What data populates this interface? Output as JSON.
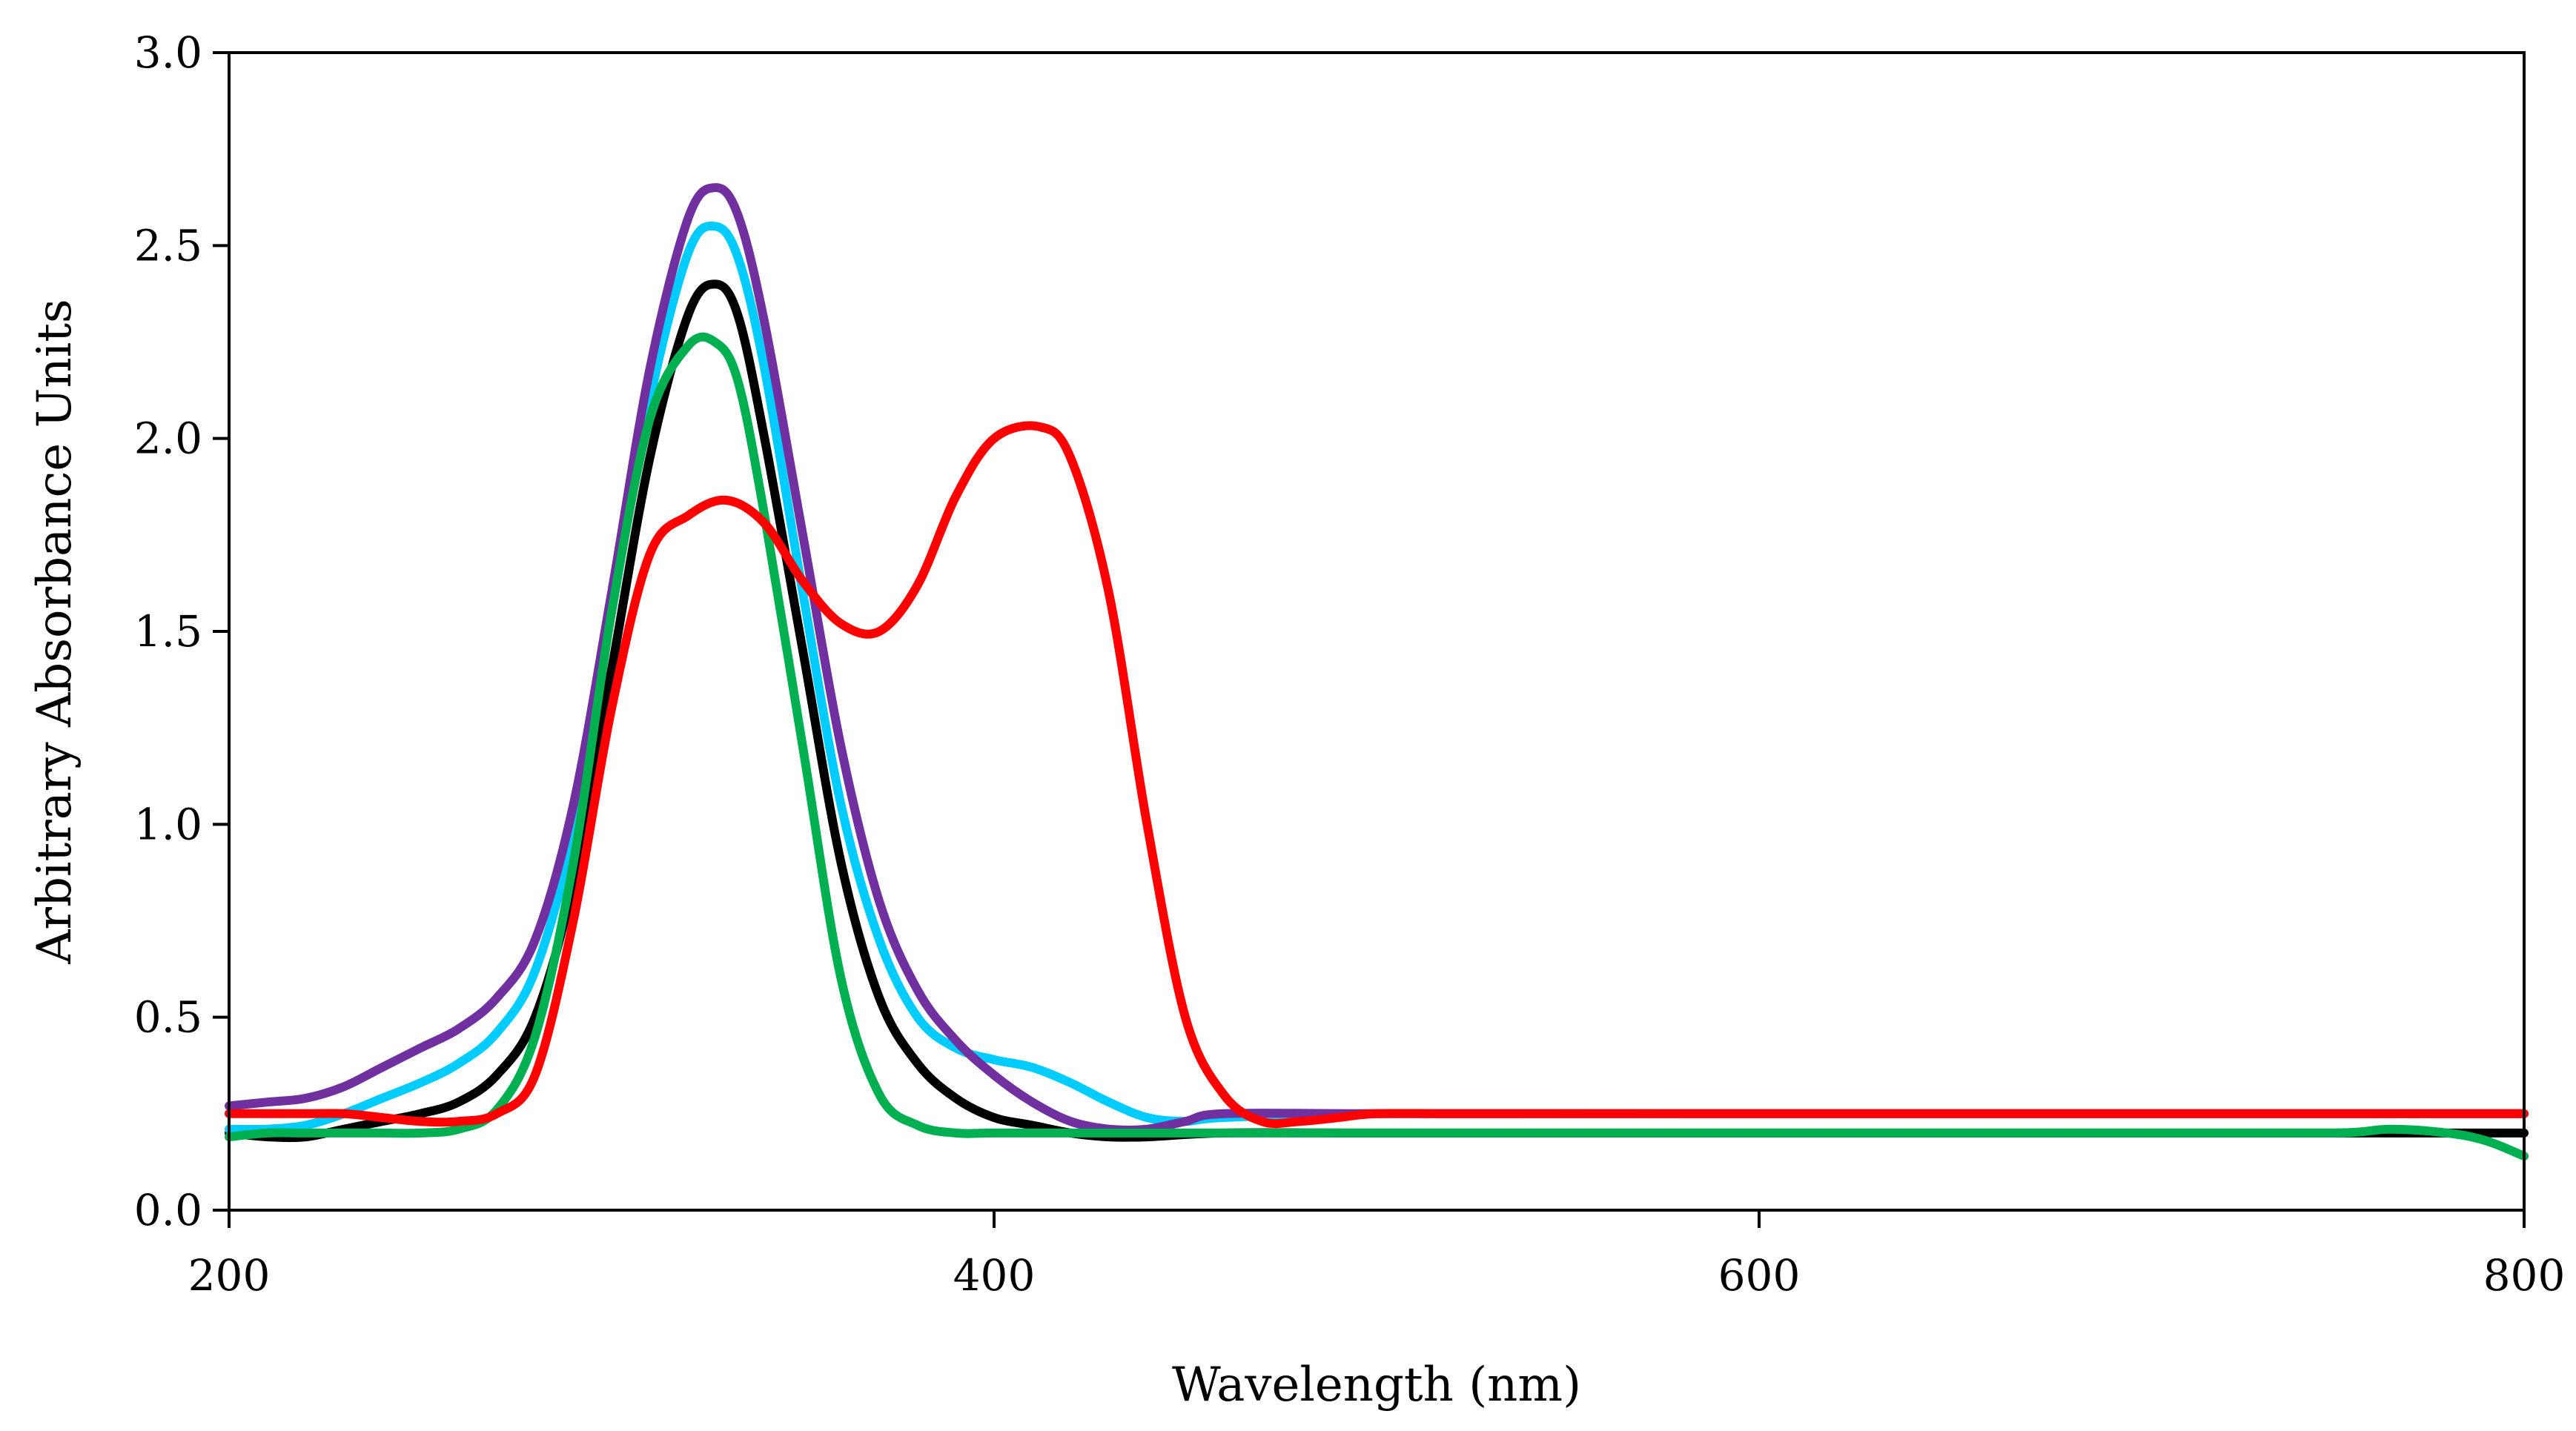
{
  "chart_data": {
    "type": "line",
    "title": "",
    "xlabel": "Wavelength (nm)",
    "ylabel": "Arbitrary Absorbance Units",
    "xlim": [
      200,
      800
    ],
    "ylim": [
      0,
      3
    ],
    "grid": false,
    "legend": "none",
    "x_ticks": [
      200,
      400,
      600,
      800
    ],
    "x_tick_labels": [
      "200",
      "400",
      "600",
      "800"
    ],
    "y_ticks": [
      0,
      0.5,
      1,
      1.5,
      2,
      2.5,
      3
    ],
    "y_tick_labels": [
      "0.0",
      "0.5",
      "1.0",
      "1.5",
      "2.0",
      "2.5",
      "3.0"
    ],
    "series": [
      {
        "name": "black",
        "color": "#000000",
        "points": [
          [
            200,
            0.2
          ],
          [
            210,
            0.19
          ],
          [
            220,
            0.19
          ],
          [
            230,
            0.21
          ],
          [
            240,
            0.23
          ],
          [
            250,
            0.25
          ],
          [
            260,
            0.28
          ],
          [
            270,
            0.35
          ],
          [
            280,
            0.5
          ],
          [
            290,
            0.85
          ],
          [
            300,
            1.4
          ],
          [
            310,
            1.95
          ],
          [
            320,
            2.32
          ],
          [
            327,
            2.4
          ],
          [
            333,
            2.32
          ],
          [
            340,
            2.0
          ],
          [
            350,
            1.45
          ],
          [
            360,
            0.9
          ],
          [
            370,
            0.55
          ],
          [
            380,
            0.38
          ],
          [
            390,
            0.29
          ],
          [
            400,
            0.24
          ],
          [
            410,
            0.22
          ],
          [
            420,
            0.2
          ],
          [
            430,
            0.19
          ],
          [
            440,
            0.19
          ],
          [
            460,
            0.2
          ],
          [
            500,
            0.2
          ],
          [
            600,
            0.2
          ],
          [
            700,
            0.2
          ],
          [
            800,
            0.2
          ]
        ]
      },
      {
        "name": "cyan",
        "color": "#00CCFF",
        "points": [
          [
            200,
            0.21
          ],
          [
            210,
            0.21
          ],
          [
            220,
            0.22
          ],
          [
            230,
            0.25
          ],
          [
            240,
            0.29
          ],
          [
            250,
            0.33
          ],
          [
            260,
            0.38
          ],
          [
            270,
            0.46
          ],
          [
            280,
            0.62
          ],
          [
            290,
            0.98
          ],
          [
            300,
            1.55
          ],
          [
            310,
            2.1
          ],
          [
            320,
            2.48
          ],
          [
            327,
            2.55
          ],
          [
            333,
            2.47
          ],
          [
            340,
            2.18
          ],
          [
            350,
            1.6
          ],
          [
            360,
            1.05
          ],
          [
            370,
            0.7
          ],
          [
            380,
            0.5
          ],
          [
            390,
            0.42
          ],
          [
            400,
            0.39
          ],
          [
            410,
            0.37
          ],
          [
            420,
            0.33
          ],
          [
            430,
            0.28
          ],
          [
            440,
            0.24
          ],
          [
            450,
            0.23
          ],
          [
            460,
            0.24
          ],
          [
            500,
            0.25
          ],
          [
            600,
            0.25
          ],
          [
            700,
            0.25
          ],
          [
            800,
            0.25
          ]
        ]
      },
      {
        "name": "purple",
        "color": "#7030A0",
        "points": [
          [
            200,
            0.27
          ],
          [
            210,
            0.28
          ],
          [
            220,
            0.29
          ],
          [
            230,
            0.32
          ],
          [
            240,
            0.37
          ],
          [
            250,
            0.42
          ],
          [
            260,
            0.47
          ],
          [
            270,
            0.55
          ],
          [
            280,
            0.7
          ],
          [
            290,
            1.05
          ],
          [
            300,
            1.6
          ],
          [
            310,
            2.18
          ],
          [
            320,
            2.57
          ],
          [
            327,
            2.65
          ],
          [
            333,
            2.58
          ],
          [
            340,
            2.3
          ],
          [
            350,
            1.75
          ],
          [
            360,
            1.2
          ],
          [
            370,
            0.8
          ],
          [
            380,
            0.57
          ],
          [
            390,
            0.44
          ],
          [
            400,
            0.35
          ],
          [
            410,
            0.28
          ],
          [
            420,
            0.23
          ],
          [
            430,
            0.21
          ],
          [
            440,
            0.21
          ],
          [
            450,
            0.23
          ],
          [
            460,
            0.25
          ],
          [
            500,
            0.25
          ],
          [
            600,
            0.25
          ],
          [
            700,
            0.25
          ],
          [
            800,
            0.25
          ]
        ]
      },
      {
        "name": "green",
        "color": "#00B050",
        "points": [
          [
            200,
            0.19
          ],
          [
            210,
            0.2
          ],
          [
            220,
            0.2
          ],
          [
            230,
            0.2
          ],
          [
            240,
            0.2
          ],
          [
            250,
            0.2
          ],
          [
            260,
            0.21
          ],
          [
            270,
            0.26
          ],
          [
            280,
            0.45
          ],
          [
            290,
            0.9
          ],
          [
            300,
            1.55
          ],
          [
            310,
            2.05
          ],
          [
            320,
            2.24
          ],
          [
            327,
            2.25
          ],
          [
            333,
            2.15
          ],
          [
            340,
            1.8
          ],
          [
            350,
            1.2
          ],
          [
            360,
            0.6
          ],
          [
            370,
            0.3
          ],
          [
            380,
            0.22
          ],
          [
            390,
            0.2
          ],
          [
            400,
            0.2
          ],
          [
            420,
            0.2
          ],
          [
            440,
            0.2
          ],
          [
            460,
            0.2
          ],
          [
            500,
            0.2
          ],
          [
            600,
            0.2
          ],
          [
            700,
            0.2
          ],
          [
            750,
            0.2
          ],
          [
            765,
            0.21
          ],
          [
            780,
            0.2
          ],
          [
            790,
            0.18
          ],
          [
            800,
            0.14
          ]
        ]
      },
      {
        "name": "red",
        "color": "#FF0000",
        "points": [
          [
            200,
            0.25
          ],
          [
            210,
            0.25
          ],
          [
            220,
            0.25
          ],
          [
            230,
            0.25
          ],
          [
            240,
            0.24
          ],
          [
            250,
            0.23
          ],
          [
            260,
            0.23
          ],
          [
            270,
            0.25
          ],
          [
            280,
            0.35
          ],
          [
            290,
            0.75
          ],
          [
            300,
            1.3
          ],
          [
            310,
            1.7
          ],
          [
            320,
            1.8
          ],
          [
            330,
            1.84
          ],
          [
            340,
            1.78
          ],
          [
            350,
            1.63
          ],
          [
            360,
            1.52
          ],
          [
            370,
            1.5
          ],
          [
            380,
            1.62
          ],
          [
            390,
            1.85
          ],
          [
            400,
            2.0
          ],
          [
            412,
            2.03
          ],
          [
            420,
            1.95
          ],
          [
            430,
            1.6
          ],
          [
            440,
            1.0
          ],
          [
            450,
            0.5
          ],
          [
            460,
            0.3
          ],
          [
            470,
            0.23
          ],
          [
            480,
            0.23
          ],
          [
            490,
            0.24
          ],
          [
            500,
            0.25
          ],
          [
            520,
            0.25
          ],
          [
            550,
            0.25
          ],
          [
            600,
            0.25
          ],
          [
            700,
            0.25
          ],
          [
            800,
            0.25
          ]
        ]
      }
    ]
  }
}
